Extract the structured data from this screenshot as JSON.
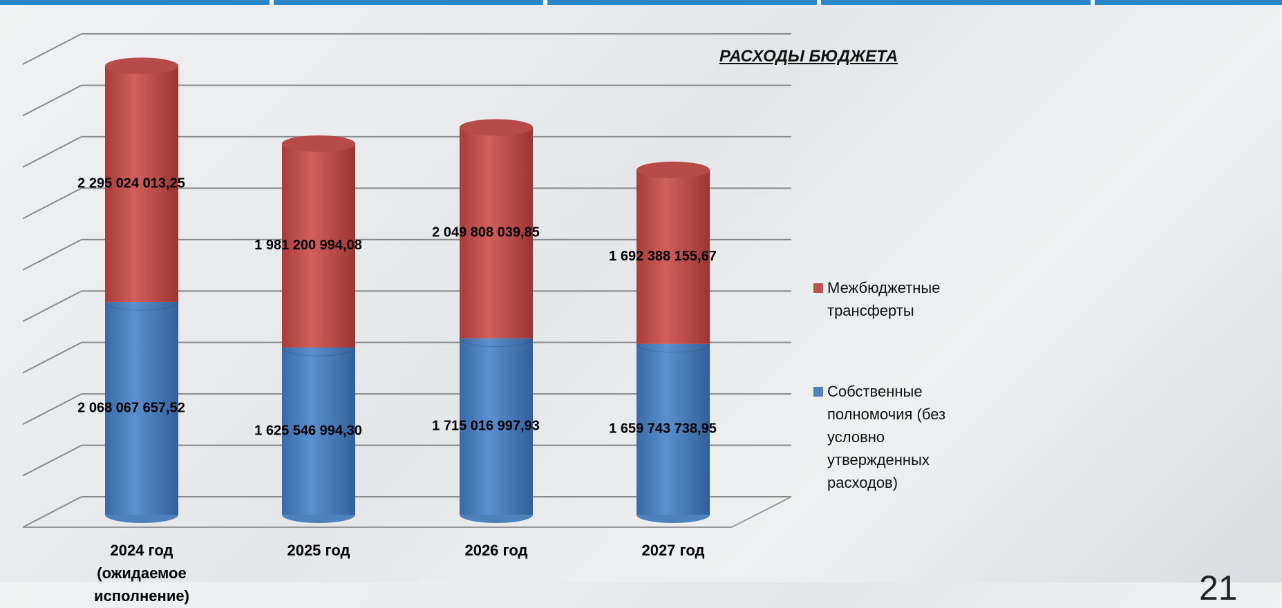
{
  "chart_data": {
    "type": "stacked_bar_3d",
    "title": "РАСХОДЫ БЮДЖЕТА",
    "categories": [
      "2024 год\n(ожидаемое исполнение)",
      "2025 год",
      "2026 год",
      "2027 год"
    ],
    "series": [
      {
        "name": "Собственные полномочия (без условно утвержденных расходов)",
        "color": "#4f81bd",
        "values": [
          2068067657.52,
          1625546994.3,
          1715016997.93,
          1659743738.95
        ],
        "value_labels": [
          "2 068 067 657,52",
          "1 625 546 994,30",
          "1 715 016 997,93",
          "1 659 743 738,95"
        ]
      },
      {
        "name": "Межбюджетные трансферты",
        "color": "#c0504d",
        "values": [
          2295024013.25,
          1981200994.08,
          2049808039.85,
          1692388155.67
        ],
        "value_labels": [
          "2 295 024 013,25",
          "1 981 200 994,08",
          "2 049 808 039,85",
          "1 692 388 155,67"
        ]
      }
    ],
    "ylim": [
      0,
      4500000000
    ],
    "yticks": [
      0,
      500000000,
      1000000000,
      1500000000,
      2000000000,
      2500000000,
      3000000000,
      3500000000,
      4000000000,
      4500000000
    ],
    "grid": true,
    "legend": "right",
    "page_number": "21"
  }
}
